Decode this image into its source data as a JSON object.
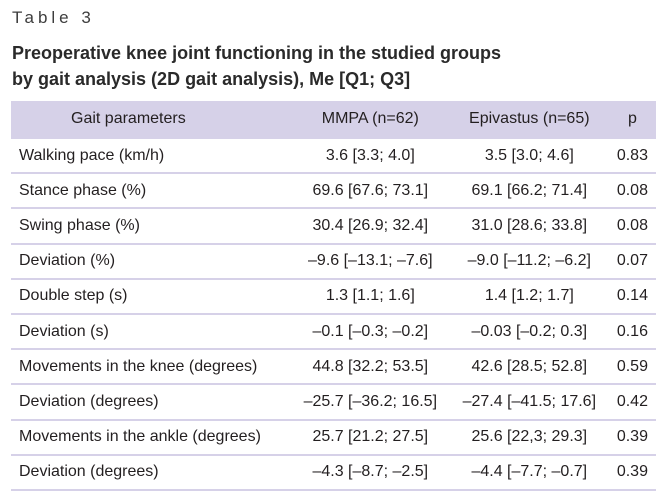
{
  "label": "Table 3",
  "title": [
    "Preoperative knee joint functioning in the studied groups",
    "by gait analysis (2D gait analysis), Me [Q1; Q3]"
  ],
  "table": {
    "columns": [
      "Gait parameters",
      "MMPA (n=62)",
      "Epivastus (n=65)",
      "p"
    ],
    "rows": [
      [
        "Walking pace (km/h)",
        "3.6 [3.3; 4.0]",
        "3.5 [3.0; 4.6]",
        "0.83"
      ],
      [
        "Stance phase (%)",
        "69.6 [67.6; 73.1]",
        "69.1 [66.2; 71.4]",
        "0.08"
      ],
      [
        "Swing phase (%)",
        "30.4 [26.9; 32.4]",
        "31.0 [28.6; 33.8]",
        "0.08"
      ],
      [
        "Deviation (%)",
        "–9.6 [–13.1; –7.6]",
        "–9.0 [–11.2; –6.2]",
        "0.07"
      ],
      [
        "Double step (s)",
        "1.3 [1.1; 1.6]",
        "1.4 [1.2; 1.7]",
        "0.14"
      ],
      [
        "Deviation (s)",
        "–0.1 [–0.3; –0.2]",
        "–0.03 [–0.2; 0.3]",
        "0.16"
      ],
      [
        "Movements in the knee (degrees)",
        "44.8 [32.2; 53.5]",
        "42.6 [28.5; 52.8]",
        "0.59"
      ],
      [
        "Deviation (degrees)",
        "–25.7 [–36.2; 16.5]",
        "–27.4 [–41.5; 17.6]",
        "0.42"
      ],
      [
        "Movements in the ankle (degrees)",
        "25.7 [21.2; 27.5]",
        "25.6 [22,3; 29.3]",
        "0.39"
      ],
      [
        "Deviation (degrees)",
        "–4.3 [–8.7; –2.5]",
        "–4.4 [–7.7; –0.7]",
        "0.39"
      ]
    ]
  }
}
